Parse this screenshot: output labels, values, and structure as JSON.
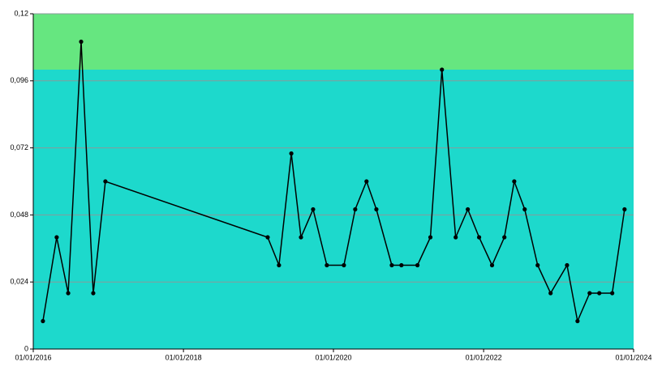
{
  "chart_data": {
    "type": "line",
    "x": [
      "2016-02-17",
      "2016-04-24",
      "2016-06-19",
      "2016-08-21",
      "2016-10-19",
      "2016-12-17",
      "2019-02-15",
      "2019-04-11",
      "2019-06-10",
      "2019-07-27",
      "2019-09-24",
      "2019-11-30",
      "2020-02-21",
      "2020-04-16",
      "2020-06-10",
      "2020-07-28",
      "2020-10-11",
      "2020-11-27",
      "2021-02-13",
      "2021-04-17",
      "2021-06-12",
      "2021-08-18",
      "2021-10-16",
      "2021-12-10",
      "2022-02-11",
      "2022-04-12",
      "2022-05-30",
      "2022-07-20",
      "2022-09-21",
      "2022-11-23",
      "2023-02-11",
      "2023-04-03",
      "2023-06-01",
      "2023-07-18",
      "2023-09-19",
      "2023-11-18"
    ],
    "series": [
      {
        "color": "#000000",
        "values": [
          0.01,
          0.04,
          0.02,
          0.11,
          0.02,
          0.06,
          0.04,
          0.03,
          0.07,
          0.04,
          0.05,
          0.03,
          0.03,
          0.05,
          0.06,
          0.05,
          0.03,
          0.03,
          0.03,
          0.04,
          0.1,
          0.04,
          0.05,
          0.04,
          0.03,
          0.04,
          0.06,
          0.05,
          0.03,
          0.02,
          0.03,
          0.01,
          0.02,
          0.02,
          0.02,
          0.05
        ]
      }
    ],
    "xlim": [
      "2016-01-01",
      "2024-01-01"
    ],
    "xticks": [
      {
        "value": "2016-01-01",
        "label": "01/01/2016"
      },
      {
        "value": "2018-01-01",
        "label": "01/01/2018"
      },
      {
        "value": "2020-01-01",
        "label": "01/01/2020"
      },
      {
        "value": "2022-01-01",
        "label": "01/01/2022"
      },
      {
        "value": "2024-01-01",
        "label": "01/01/2024"
      }
    ],
    "ylim": [
      0,
      0.12
    ],
    "yticks": [
      0,
      {
        "value": 0.024,
        "label": "0,024"
      },
      {
        "value": 0.048,
        "label": "0,048"
      },
      {
        "value": 0.072,
        "label": "0,072"
      },
      {
        "value": 0.096,
        "label": "0,096"
      },
      {
        "value": 0.12,
        "label": "0,12"
      }
    ],
    "bands": [
      {
        "from": 0,
        "to": 0.1,
        "color": "#1dd9cc"
      },
      {
        "from": 0.1,
        "to": 0.12,
        "color": "#66e680"
      }
    ],
    "grid": true
  }
}
